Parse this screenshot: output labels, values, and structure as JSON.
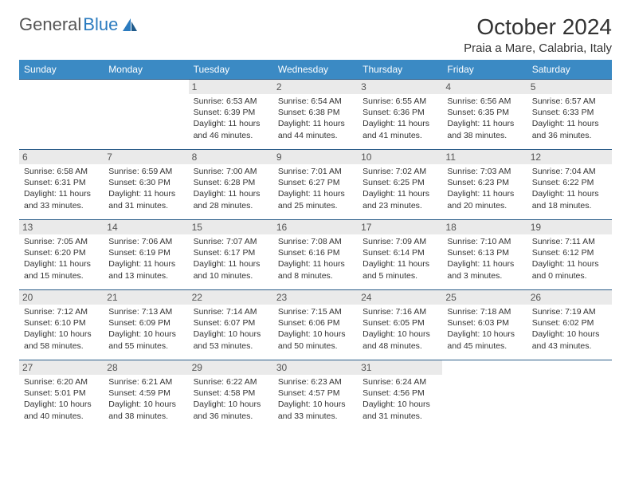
{
  "brand": {
    "part1": "General",
    "part2": "Blue"
  },
  "title": "October 2024",
  "location": "Praia a Mare, Calabria, Italy",
  "colors": {
    "header_bg": "#3b8ac4",
    "header_fg": "#ffffff",
    "row_border": "#2b5d8a",
    "daynum_bg": "#eaeaea",
    "logo_blue": "#2b7bbf"
  },
  "day_headers": [
    "Sunday",
    "Monday",
    "Tuesday",
    "Wednesday",
    "Thursday",
    "Friday",
    "Saturday"
  ],
  "weeks": [
    [
      {
        "n": "",
        "sr": "",
        "ss": "",
        "dl": ""
      },
      {
        "n": "",
        "sr": "",
        "ss": "",
        "dl": ""
      },
      {
        "n": "1",
        "sr": "Sunrise: 6:53 AM",
        "ss": "Sunset: 6:39 PM",
        "dl": "Daylight: 11 hours and 46 minutes."
      },
      {
        "n": "2",
        "sr": "Sunrise: 6:54 AM",
        "ss": "Sunset: 6:38 PM",
        "dl": "Daylight: 11 hours and 44 minutes."
      },
      {
        "n": "3",
        "sr": "Sunrise: 6:55 AM",
        "ss": "Sunset: 6:36 PM",
        "dl": "Daylight: 11 hours and 41 minutes."
      },
      {
        "n": "4",
        "sr": "Sunrise: 6:56 AM",
        "ss": "Sunset: 6:35 PM",
        "dl": "Daylight: 11 hours and 38 minutes."
      },
      {
        "n": "5",
        "sr": "Sunrise: 6:57 AM",
        "ss": "Sunset: 6:33 PM",
        "dl": "Daylight: 11 hours and 36 minutes."
      }
    ],
    [
      {
        "n": "6",
        "sr": "Sunrise: 6:58 AM",
        "ss": "Sunset: 6:31 PM",
        "dl": "Daylight: 11 hours and 33 minutes."
      },
      {
        "n": "7",
        "sr": "Sunrise: 6:59 AM",
        "ss": "Sunset: 6:30 PM",
        "dl": "Daylight: 11 hours and 31 minutes."
      },
      {
        "n": "8",
        "sr": "Sunrise: 7:00 AM",
        "ss": "Sunset: 6:28 PM",
        "dl": "Daylight: 11 hours and 28 minutes."
      },
      {
        "n": "9",
        "sr": "Sunrise: 7:01 AM",
        "ss": "Sunset: 6:27 PM",
        "dl": "Daylight: 11 hours and 25 minutes."
      },
      {
        "n": "10",
        "sr": "Sunrise: 7:02 AM",
        "ss": "Sunset: 6:25 PM",
        "dl": "Daylight: 11 hours and 23 minutes."
      },
      {
        "n": "11",
        "sr": "Sunrise: 7:03 AM",
        "ss": "Sunset: 6:23 PM",
        "dl": "Daylight: 11 hours and 20 minutes."
      },
      {
        "n": "12",
        "sr": "Sunrise: 7:04 AM",
        "ss": "Sunset: 6:22 PM",
        "dl": "Daylight: 11 hours and 18 minutes."
      }
    ],
    [
      {
        "n": "13",
        "sr": "Sunrise: 7:05 AM",
        "ss": "Sunset: 6:20 PM",
        "dl": "Daylight: 11 hours and 15 minutes."
      },
      {
        "n": "14",
        "sr": "Sunrise: 7:06 AM",
        "ss": "Sunset: 6:19 PM",
        "dl": "Daylight: 11 hours and 13 minutes."
      },
      {
        "n": "15",
        "sr": "Sunrise: 7:07 AM",
        "ss": "Sunset: 6:17 PM",
        "dl": "Daylight: 11 hours and 10 minutes."
      },
      {
        "n": "16",
        "sr": "Sunrise: 7:08 AM",
        "ss": "Sunset: 6:16 PM",
        "dl": "Daylight: 11 hours and 8 minutes."
      },
      {
        "n": "17",
        "sr": "Sunrise: 7:09 AM",
        "ss": "Sunset: 6:14 PM",
        "dl": "Daylight: 11 hours and 5 minutes."
      },
      {
        "n": "18",
        "sr": "Sunrise: 7:10 AM",
        "ss": "Sunset: 6:13 PM",
        "dl": "Daylight: 11 hours and 3 minutes."
      },
      {
        "n": "19",
        "sr": "Sunrise: 7:11 AM",
        "ss": "Sunset: 6:12 PM",
        "dl": "Daylight: 11 hours and 0 minutes."
      }
    ],
    [
      {
        "n": "20",
        "sr": "Sunrise: 7:12 AM",
        "ss": "Sunset: 6:10 PM",
        "dl": "Daylight: 10 hours and 58 minutes."
      },
      {
        "n": "21",
        "sr": "Sunrise: 7:13 AM",
        "ss": "Sunset: 6:09 PM",
        "dl": "Daylight: 10 hours and 55 minutes."
      },
      {
        "n": "22",
        "sr": "Sunrise: 7:14 AM",
        "ss": "Sunset: 6:07 PM",
        "dl": "Daylight: 10 hours and 53 minutes."
      },
      {
        "n": "23",
        "sr": "Sunrise: 7:15 AM",
        "ss": "Sunset: 6:06 PM",
        "dl": "Daylight: 10 hours and 50 minutes."
      },
      {
        "n": "24",
        "sr": "Sunrise: 7:16 AM",
        "ss": "Sunset: 6:05 PM",
        "dl": "Daylight: 10 hours and 48 minutes."
      },
      {
        "n": "25",
        "sr": "Sunrise: 7:18 AM",
        "ss": "Sunset: 6:03 PM",
        "dl": "Daylight: 10 hours and 45 minutes."
      },
      {
        "n": "26",
        "sr": "Sunrise: 7:19 AM",
        "ss": "Sunset: 6:02 PM",
        "dl": "Daylight: 10 hours and 43 minutes."
      }
    ],
    [
      {
        "n": "27",
        "sr": "Sunrise: 6:20 AM",
        "ss": "Sunset: 5:01 PM",
        "dl": "Daylight: 10 hours and 40 minutes."
      },
      {
        "n": "28",
        "sr": "Sunrise: 6:21 AM",
        "ss": "Sunset: 4:59 PM",
        "dl": "Daylight: 10 hours and 38 minutes."
      },
      {
        "n": "29",
        "sr": "Sunrise: 6:22 AM",
        "ss": "Sunset: 4:58 PM",
        "dl": "Daylight: 10 hours and 36 minutes."
      },
      {
        "n": "30",
        "sr": "Sunrise: 6:23 AM",
        "ss": "Sunset: 4:57 PM",
        "dl": "Daylight: 10 hours and 33 minutes."
      },
      {
        "n": "31",
        "sr": "Sunrise: 6:24 AM",
        "ss": "Sunset: 4:56 PM",
        "dl": "Daylight: 10 hours and 31 minutes."
      },
      {
        "n": "",
        "sr": "",
        "ss": "",
        "dl": ""
      },
      {
        "n": "",
        "sr": "",
        "ss": "",
        "dl": ""
      }
    ]
  ]
}
